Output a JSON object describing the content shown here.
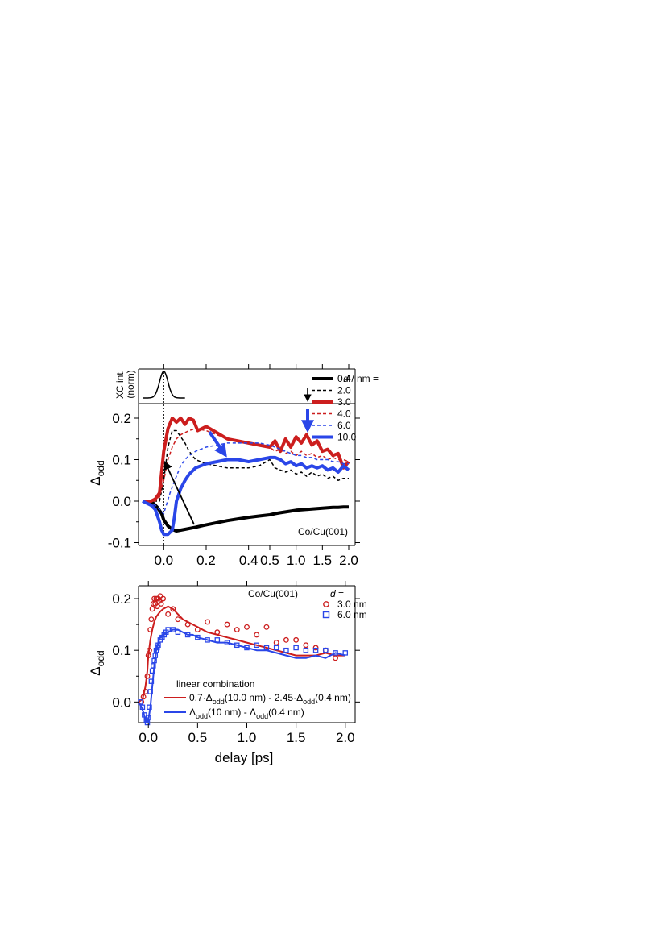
{
  "chart_data": [
    {
      "id": "top",
      "type": "line",
      "xlabel": "",
      "ylabel": "Δodd",
      "ylabel_main": "Δ",
      "ylabel_sub": "odd",
      "annotation": "Co/Cu(001)",
      "legend_header_d": "d",
      "legend_header_rest": " / nm =",
      "x_axis": {
        "type": "broken",
        "segment1": {
          "range": [
            -0.1,
            0.5
          ],
          "ticks": [
            -0.2,
            0,
            0.2,
            0.4
          ],
          "tick_labels": [
            "",
            "0.0",
            "0.2",
            "0.4"
          ]
        },
        "segment2": {
          "range": [
            0.5,
            2.0
          ],
          "ticks": [
            0.5,
            1.0,
            1.5,
            2.0
          ],
          "tick_labels": [
            "0.5",
            "1.0",
            "1.5",
            "2.0"
          ]
        }
      },
      "ylim": [
        -0.1,
        0.22
      ],
      "yticks": [
        -0.1,
        0.0,
        0.1,
        0.2
      ],
      "ytick_labels": [
        "-0.1",
        "0.0",
        "0.1",
        "0.2"
      ],
      "inset": {
        "ylabel_line1": "XC int.",
        "ylabel_line2": "(norm)",
        "gaussian": {
          "center": 0.0,
          "sigma": 0.02,
          "baseline": 0.0,
          "peak": 1.0
        }
      },
      "series": [
        {
          "name": "0.4",
          "color": "#000000",
          "style": "solid",
          "width": 4,
          "x": [
            -0.1,
            -0.07,
            -0.05,
            -0.03,
            -0.01,
            0.0,
            0.02,
            0.04,
            0.06,
            0.08,
            0.1,
            0.15,
            0.2,
            0.25,
            0.3,
            0.35,
            0.4,
            0.45,
            0.5,
            0.6,
            0.7,
            0.8,
            0.9,
            1.0,
            1.1,
            1.2,
            1.3,
            1.4,
            1.5,
            1.6,
            1.7,
            1.8,
            1.9,
            2.0
          ],
          "y": [
            0.0,
            0.0,
            -0.005,
            -0.015,
            -0.03,
            -0.045,
            -0.06,
            -0.068,
            -0.072,
            -0.07,
            -0.068,
            -0.063,
            -0.057,
            -0.052,
            -0.047,
            -0.043,
            -0.039,
            -0.036,
            -0.033,
            -0.03,
            -0.028,
            -0.026,
            -0.024,
            -0.022,
            -0.021,
            -0.02,
            -0.019,
            -0.018,
            -0.017,
            -0.016,
            -0.015,
            -0.015,
            -0.014,
            -0.014
          ]
        },
        {
          "name": "2.0",
          "color": "#000000",
          "style": "dashed",
          "width": 1.5,
          "x": [
            -0.1,
            -0.05,
            -0.02,
            0.0,
            0.02,
            0.04,
            0.06,
            0.08,
            0.1,
            0.12,
            0.15,
            0.2,
            0.25,
            0.3,
            0.35,
            0.4,
            0.45,
            0.5,
            0.6,
            0.7,
            0.8,
            0.9,
            1.0,
            1.1,
            1.2,
            1.3,
            1.4,
            1.5,
            1.6,
            1.7,
            1.8,
            1.9,
            2.0
          ],
          "y": [
            0.0,
            0.0,
            0.0,
            0.05,
            0.13,
            0.17,
            0.17,
            0.155,
            0.14,
            0.12,
            0.1,
            0.09,
            0.085,
            0.08,
            0.08,
            0.08,
            0.085,
            0.1,
            0.08,
            0.075,
            0.07,
            0.075,
            0.065,
            0.07,
            0.06,
            0.07,
            0.06,
            0.065,
            0.055,
            0.06,
            0.05,
            0.055,
            0.055
          ]
        },
        {
          "name": "3.0",
          "color": "#cc1e1e",
          "style": "solid",
          "width": 4,
          "x": [
            -0.1,
            -0.06,
            -0.04,
            -0.02,
            0.0,
            0.02,
            0.04,
            0.06,
            0.08,
            0.1,
            0.12,
            0.14,
            0.16,
            0.2,
            0.25,
            0.3,
            0.35,
            0.4,
            0.45,
            0.5,
            0.6,
            0.7,
            0.8,
            0.9,
            1.0,
            1.1,
            1.2,
            1.3,
            1.4,
            1.5,
            1.6,
            1.7,
            1.8,
            1.9,
            2.0
          ],
          "y": [
            0.0,
            0.0,
            0.005,
            0.02,
            0.12,
            0.175,
            0.2,
            0.19,
            0.2,
            0.185,
            0.2,
            0.195,
            0.17,
            0.18,
            0.165,
            0.15,
            0.145,
            0.14,
            0.135,
            0.13,
            0.145,
            0.12,
            0.15,
            0.13,
            0.155,
            0.14,
            0.16,
            0.135,
            0.145,
            0.12,
            0.125,
            0.11,
            0.115,
            0.08,
            0.095
          ]
        },
        {
          "name": "4.0",
          "color": "#cc1e1e",
          "style": "dashed",
          "width": 1.5,
          "x": [
            -0.1,
            -0.04,
            -0.02,
            0.0,
            0.02,
            0.04,
            0.06,
            0.08,
            0.1,
            0.12,
            0.15,
            0.2,
            0.25,
            0.3,
            0.35,
            0.4,
            0.45,
            0.5,
            0.6,
            0.7,
            0.8,
            0.9,
            1.0,
            1.1,
            1.2,
            1.3,
            1.4,
            1.5,
            1.6,
            1.7,
            1.8,
            1.9,
            2.0
          ],
          "y": [
            0.0,
            0.0,
            0.01,
            0.05,
            0.1,
            0.13,
            0.15,
            0.16,
            0.165,
            0.17,
            0.175,
            0.17,
            0.16,
            0.15,
            0.145,
            0.14,
            0.135,
            0.13,
            0.12,
            0.125,
            0.115,
            0.12,
            0.11,
            0.12,
            0.11,
            0.115,
            0.105,
            0.11,
            0.1,
            0.105,
            0.1,
            0.1,
            0.095
          ]
        },
        {
          "name": "6.0",
          "color": "#2a46e8",
          "style": "dashed",
          "width": 1.5,
          "x": [
            -0.1,
            -0.04,
            0.0,
            0.03,
            0.06,
            0.08,
            0.1,
            0.12,
            0.15,
            0.2,
            0.25,
            0.3,
            0.35,
            0.4,
            0.45,
            0.5,
            0.6,
            0.7,
            0.8,
            0.9,
            1.0,
            1.1,
            1.2,
            1.3,
            1.4,
            1.5,
            1.6,
            1.7,
            1.8,
            1.9,
            2.0
          ],
          "y": [
            0.0,
            -0.01,
            -0.03,
            0.02,
            0.06,
            0.085,
            0.1,
            0.11,
            0.12,
            0.13,
            0.135,
            0.14,
            0.14,
            0.14,
            0.14,
            0.135,
            0.13,
            0.125,
            0.12,
            0.115,
            0.11,
            0.11,
            0.105,
            0.105,
            0.1,
            0.1,
            0.1,
            0.095,
            0.095,
            0.09,
            0.09
          ]
        },
        {
          "name": "10.0",
          "color": "#2a46e8",
          "style": "solid",
          "width": 4,
          "x": [
            -0.1,
            -0.06,
            -0.04,
            -0.02,
            -0.01,
            0.0,
            0.02,
            0.04,
            0.05,
            0.06,
            0.08,
            0.1,
            0.12,
            0.15,
            0.2,
            0.25,
            0.3,
            0.35,
            0.4,
            0.45,
            0.5,
            0.6,
            0.7,
            0.8,
            0.9,
            1.0,
            1.1,
            1.2,
            1.3,
            1.4,
            1.5,
            1.6,
            1.7,
            1.8,
            1.9,
            2.0
          ],
          "y": [
            0.0,
            -0.01,
            -0.02,
            -0.05,
            -0.07,
            -0.08,
            -0.08,
            -0.07,
            -0.04,
            0.0,
            0.03,
            0.05,
            0.065,
            0.08,
            0.09,
            0.095,
            0.1,
            0.1,
            0.095,
            0.1,
            0.105,
            0.105,
            0.1,
            0.09,
            0.095,
            0.085,
            0.09,
            0.08,
            0.085,
            0.08,
            0.085,
            0.075,
            0.08,
            0.07,
            0.085,
            0.075
          ]
        }
      ]
    },
    {
      "id": "bottom",
      "type": "line+scatter",
      "xlabel": "delay [ps]",
      "ylabel": "Δodd",
      "ylabel_main": "Δ",
      "ylabel_sub": "odd",
      "annotation": "Co/Cu(001)",
      "legend_title_italic": "d",
      "legend_title_rest": " =",
      "xlim": [
        -0.1,
        2.1
      ],
      "xticks": [
        0.0,
        0.5,
        1.0,
        1.5,
        2.0
      ],
      "xtick_labels": [
        "0.0",
        "0.5",
        "1.0",
        "1.5",
        "2.0"
      ],
      "ylim": [
        -0.04,
        0.225
      ],
      "yticks": [
        0.0,
        0.1,
        0.2
      ],
      "ytick_labels": [
        "0.0",
        "0.1",
        "0.2"
      ],
      "lincomb_title": "linear combination",
      "lincomb_red": {
        "p1": "0.7·Δ",
        "s1": "odd",
        "p2": "(10.0 nm) - 2.45·Δ",
        "s2": "odd",
        "p3": "(0.4 nm)"
      },
      "lincomb_blue": {
        "p1": "Δ",
        "s1": "odd",
        "p2": "(10 nm) - Δ",
        "s2": "odd",
        "p3": "(0.4 nm)"
      },
      "scatter": [
        {
          "name": "3.0 nm",
          "marker": "circle",
          "color": "#cc1e1e",
          "x": [
            -0.07,
            -0.05,
            -0.03,
            -0.01,
            0.0,
            0.01,
            0.02,
            0.03,
            0.04,
            0.05,
            0.06,
            0.07,
            0.08,
            0.09,
            0.1,
            0.11,
            0.12,
            0.13,
            0.15,
            0.2,
            0.25,
            0.3,
            0.4,
            0.5,
            0.6,
            0.7,
            0.8,
            0.9,
            1.0,
            1.1,
            1.2,
            1.3,
            1.4,
            1.5,
            1.6,
            1.7,
            1.8,
            1.9
          ],
          "y": [
            0.0,
            0.01,
            0.02,
            0.05,
            0.09,
            0.1,
            0.14,
            0.16,
            0.18,
            0.19,
            0.2,
            0.19,
            0.2,
            0.185,
            0.2,
            0.195,
            0.205,
            0.19,
            0.2,
            0.17,
            0.18,
            0.16,
            0.15,
            0.14,
            0.155,
            0.135,
            0.15,
            0.14,
            0.145,
            0.13,
            0.145,
            0.115,
            0.12,
            0.12,
            0.11,
            0.105,
            0.1,
            0.085
          ]
        },
        {
          "name": "6.0 nm",
          "marker": "square",
          "color": "#2a46e8",
          "x": [
            -0.08,
            -0.06,
            -0.04,
            -0.02,
            -0.01,
            0.0,
            0.01,
            0.02,
            0.03,
            0.04,
            0.05,
            0.06,
            0.07,
            0.08,
            0.09,
            0.1,
            0.12,
            0.14,
            0.16,
            0.18,
            0.2,
            0.25,
            0.3,
            0.4,
            0.5,
            0.6,
            0.7,
            0.8,
            0.9,
            1.0,
            1.1,
            1.2,
            1.3,
            1.4,
            1.5,
            1.6,
            1.7,
            1.8,
            1.9,
            2.0
          ],
          "y": [
            0.0,
            -0.01,
            -0.025,
            -0.035,
            -0.04,
            -0.03,
            -0.01,
            0.02,
            0.04,
            0.06,
            0.07,
            0.08,
            0.09,
            0.1,
            0.105,
            0.11,
            0.12,
            0.125,
            0.13,
            0.135,
            0.14,
            0.14,
            0.135,
            0.13,
            0.125,
            0.12,
            0.12,
            0.115,
            0.11,
            0.105,
            0.11,
            0.105,
            0.105,
            0.1,
            0.105,
            0.1,
            0.1,
            0.1,
            0.095,
            0.095
          ]
        }
      ],
      "lines": [
        {
          "name": "0.7·Δodd(10.0 nm) - 2.45·Δodd(0.4 nm)",
          "color": "#cc1e1e",
          "x": [
            -0.1,
            -0.06,
            -0.03,
            -0.01,
            0.0,
            0.02,
            0.04,
            0.06,
            0.08,
            0.1,
            0.12,
            0.15,
            0.2,
            0.25,
            0.3,
            0.35,
            0.4,
            0.45,
            0.5,
            0.6,
            0.7,
            0.8,
            0.9,
            1.0,
            1.1,
            1.2,
            1.3,
            1.4,
            1.5,
            1.6,
            1.7,
            1.8,
            1.9,
            2.0
          ],
          "y": [
            0.0,
            0.005,
            0.03,
            0.06,
            0.09,
            0.12,
            0.14,
            0.155,
            0.165,
            0.17,
            0.175,
            0.18,
            0.185,
            0.18,
            0.17,
            0.16,
            0.155,
            0.15,
            0.145,
            0.135,
            0.13,
            0.125,
            0.12,
            0.115,
            0.11,
            0.105,
            0.1,
            0.095,
            0.09,
            0.09,
            0.09,
            0.095,
            0.09,
            0.09
          ]
        },
        {
          "name": "Δodd(10 nm) - Δodd(0.4 nm)",
          "color": "#2a46e8",
          "x": [
            -0.1,
            -0.07,
            -0.05,
            -0.03,
            -0.01,
            0.0,
            0.02,
            0.04,
            0.06,
            0.08,
            0.1,
            0.12,
            0.15,
            0.2,
            0.25,
            0.3,
            0.35,
            0.4,
            0.45,
            0.5,
            0.6,
            0.7,
            0.8,
            0.9,
            1.0,
            1.1,
            1.2,
            1.3,
            1.4,
            1.5,
            1.6,
            1.7,
            1.8,
            1.9,
            2.0
          ],
          "y": [
            0.0,
            -0.01,
            -0.02,
            -0.035,
            -0.04,
            -0.035,
            -0.01,
            0.03,
            0.07,
            0.1,
            0.115,
            0.125,
            0.13,
            0.135,
            0.14,
            0.14,
            0.135,
            0.13,
            0.13,
            0.125,
            0.12,
            0.115,
            0.115,
            0.11,
            0.105,
            0.1,
            0.1,
            0.095,
            0.09,
            0.085,
            0.085,
            0.09,
            0.085,
            0.095,
            0.09
          ]
        }
      ]
    }
  ]
}
